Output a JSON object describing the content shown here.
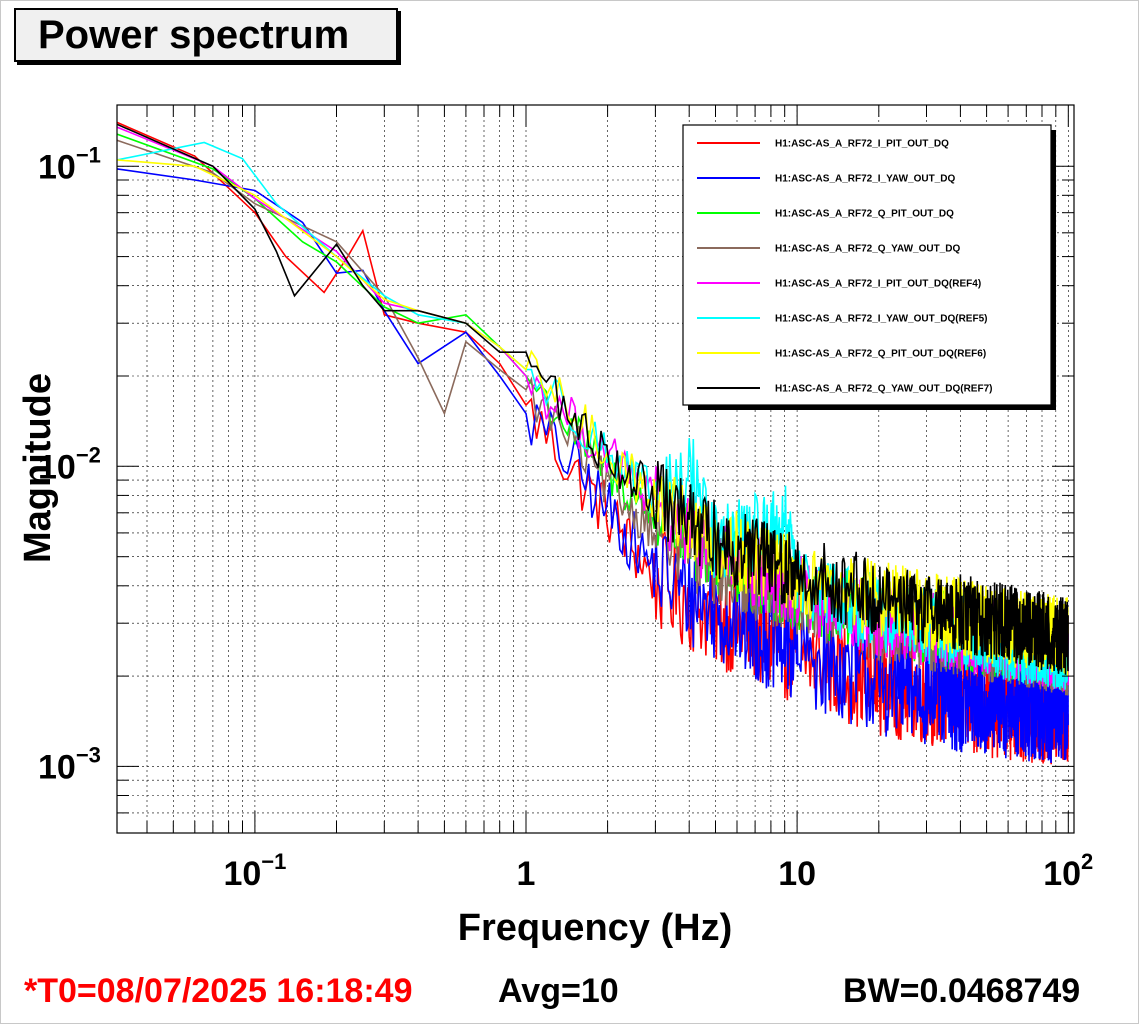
{
  "title": "Power spectrum",
  "footer": {
    "t0": "*T0=08/07/2025 16:18:49",
    "avg": "Avg=10",
    "bw": "BW=0.0468749"
  },
  "chart_data": {
    "type": "line",
    "title": "Power spectrum",
    "xlabel": "Frequency (Hz)",
    "ylabel": "Magnitude",
    "xscale": "log",
    "yscale": "log",
    "xlim": [
      0.031,
      105
    ],
    "ylim": [
      0.0006,
      0.16
    ],
    "xticks": [
      {
        "value": 0.1,
        "base": "10",
        "exp": "−1"
      },
      {
        "value": 1,
        "base": "1",
        "exp": ""
      },
      {
        "value": 10,
        "base": "10",
        "exp": ""
      },
      {
        "value": 100,
        "base": "10",
        "exp": "2"
      }
    ],
    "yticks": [
      {
        "value": 0.1,
        "base": "10",
        "exp": "−1"
      },
      {
        "value": 0.01,
        "base": "10",
        "exp": "−2"
      },
      {
        "value": 0.001,
        "base": "10",
        "exp": "−3"
      }
    ],
    "grid": true,
    "legend_position": "top-right",
    "series": [
      {
        "name": "H1:ASC-AS_A_RF72_I_PIT_OUT_DQ",
        "color": "#ff0000",
        "noise": 0.32,
        "points": [
          [
            0.031,
            0.14
          ],
          [
            0.06,
            0.108
          ],
          [
            0.1,
            0.07
          ],
          [
            0.13,
            0.05
          ],
          [
            0.18,
            0.038
          ],
          [
            0.22,
            0.05
          ],
          [
            0.25,
            0.061
          ],
          [
            0.3,
            0.032
          ],
          [
            0.4,
            0.03
          ],
          [
            0.6,
            0.028
          ],
          [
            0.8,
            0.022
          ],
          [
            1,
            0.016
          ],
          [
            1.5,
            0.0095
          ],
          [
            2,
            0.007
          ],
          [
            3,
            0.0042
          ],
          [
            5,
            0.0032
          ],
          [
            10,
            0.0024
          ],
          [
            20,
            0.0019
          ],
          [
            50,
            0.0016
          ],
          [
            100,
            0.0015
          ]
        ]
      },
      {
        "name": "H1:ASC-AS_A_RF72_I_YAW_OUT_DQ",
        "color": "#0000ff",
        "noise": 0.32,
        "points": [
          [
            0.031,
            0.098
          ],
          [
            0.06,
            0.09
          ],
          [
            0.1,
            0.083
          ],
          [
            0.15,
            0.065
          ],
          [
            0.2,
            0.044
          ],
          [
            0.25,
            0.045
          ],
          [
            0.3,
            0.033
          ],
          [
            0.4,
            0.022
          ],
          [
            0.6,
            0.028
          ],
          [
            0.8,
            0.02
          ],
          [
            1,
            0.015
          ],
          [
            1.5,
            0.01
          ],
          [
            2,
            0.0072
          ],
          [
            3,
            0.0045
          ],
          [
            5,
            0.0033
          ],
          [
            10,
            0.0024
          ],
          [
            20,
            0.0019
          ],
          [
            50,
            0.0016
          ],
          [
            100,
            0.0015
          ]
        ]
      },
      {
        "name": "H1:ASC-AS_A_RF72_Q_PIT_OUT_DQ",
        "color": "#00ff00",
        "noise": 0.24,
        "points": [
          [
            0.031,
            0.128
          ],
          [
            0.07,
            0.098
          ],
          [
            0.1,
            0.078
          ],
          [
            0.15,
            0.056
          ],
          [
            0.2,
            0.048
          ],
          [
            0.3,
            0.034
          ],
          [
            0.4,
            0.03
          ],
          [
            0.6,
            0.032
          ],
          [
            0.8,
            0.025
          ],
          [
            1,
            0.02
          ],
          [
            1.5,
            0.013
          ],
          [
            2,
            0.0095
          ],
          [
            3,
            0.0068
          ],
          [
            5,
            0.0048
          ],
          [
            10,
            0.0038
          ],
          [
            20,
            0.0031
          ],
          [
            50,
            0.0027
          ],
          [
            100,
            0.0024
          ]
        ]
      },
      {
        "name": "H1:ASC-AS_A_RF72_Q_YAW_OUT_DQ",
        "color": "#8b6a5c",
        "noise": 0.24,
        "points": [
          [
            0.031,
            0.122
          ],
          [
            0.07,
            0.095
          ],
          [
            0.1,
            0.075
          ],
          [
            0.2,
            0.056
          ],
          [
            0.3,
            0.037
          ],
          [
            0.4,
            0.023
          ],
          [
            0.5,
            0.015
          ],
          [
            0.6,
            0.026
          ],
          [
            0.8,
            0.021
          ],
          [
            1,
            0.018
          ],
          [
            1.5,
            0.012
          ],
          [
            2,
            0.0085
          ],
          [
            3,
            0.0062
          ],
          [
            5,
            0.0046
          ],
          [
            10,
            0.0037
          ],
          [
            20,
            0.003
          ],
          [
            50,
            0.0026
          ],
          [
            100,
            0.0023
          ]
        ]
      },
      {
        "name": "H1:ASC-AS_A_RF72_I_PIT_OUT_DQ(REF4)",
        "color": "#ff00ff",
        "noise": 0.24,
        "points": [
          [
            0.031,
            0.135
          ],
          [
            0.07,
            0.1
          ],
          [
            0.1,
            0.078
          ],
          [
            0.2,
            0.052
          ],
          [
            0.3,
            0.035
          ],
          [
            0.4,
            0.033
          ],
          [
            0.6,
            0.03
          ],
          [
            0.8,
            0.025
          ],
          [
            1,
            0.02
          ],
          [
            1.5,
            0.014
          ],
          [
            2,
            0.011
          ],
          [
            3,
            0.0075
          ],
          [
            5,
            0.0052
          ],
          [
            10,
            0.0038
          ],
          [
            20,
            0.0031
          ],
          [
            50,
            0.0027
          ],
          [
            100,
            0.0024
          ]
        ]
      },
      {
        "name": "H1:ASC-AS_A_RF72_I_YAW_OUT_DQ(REF5)",
        "color": "#00ffff",
        "noise": 0.24,
        "points": [
          [
            0.031,
            0.105
          ],
          [
            0.065,
            0.12
          ],
          [
            0.09,
            0.106
          ],
          [
            0.12,
            0.075
          ],
          [
            0.2,
            0.05
          ],
          [
            0.3,
            0.037
          ],
          [
            0.4,
            0.032
          ],
          [
            0.6,
            0.03
          ],
          [
            0.8,
            0.025
          ],
          [
            1,
            0.021
          ],
          [
            1.5,
            0.015
          ],
          [
            2,
            0.011
          ],
          [
            3,
            0.0078
          ],
          [
            4.2,
            0.0095
          ],
          [
            5,
            0.0055
          ],
          [
            9.5,
            0.0065
          ],
          [
            10,
            0.004
          ],
          [
            20,
            0.0032
          ],
          [
            50,
            0.0027
          ],
          [
            100,
            0.0024
          ]
        ]
      },
      {
        "name": "H1:ASC-AS_A_RF72_Q_PIT_OUT_DQ(REF6)",
        "color": "#ffff00",
        "noise": 0.24,
        "points": [
          [
            0.031,
            0.105
          ],
          [
            0.06,
            0.1
          ],
          [
            0.1,
            0.08
          ],
          [
            0.2,
            0.05
          ],
          [
            0.3,
            0.036
          ],
          [
            0.4,
            0.033
          ],
          [
            0.6,
            0.03
          ],
          [
            0.8,
            0.025
          ],
          [
            1,
            0.021
          ],
          [
            1.5,
            0.015
          ],
          [
            2,
            0.011
          ],
          [
            3,
            0.0078
          ],
          [
            5,
            0.0056
          ],
          [
            10,
            0.0043
          ],
          [
            20,
            0.0036
          ],
          [
            50,
            0.003
          ],
          [
            100,
            0.0027
          ]
        ]
      },
      {
        "name": "H1:ASC-AS_A_RF72_Q_YAW_OUT_DQ(REF7)",
        "color": "#000000",
        "noise": 0.24,
        "points": [
          [
            0.031,
            0.138
          ],
          [
            0.07,
            0.1
          ],
          [
            0.1,
            0.072
          ],
          [
            0.12,
            0.052
          ],
          [
            0.14,
            0.037
          ],
          [
            0.2,
            0.055
          ],
          [
            0.25,
            0.04
          ],
          [
            0.3,
            0.033
          ],
          [
            0.4,
            0.033
          ],
          [
            0.6,
            0.03
          ],
          [
            0.8,
            0.024
          ],
          [
            1,
            0.024
          ],
          [
            1.5,
            0.014
          ],
          [
            2,
            0.011
          ],
          [
            3,
            0.0078
          ],
          [
            5,
            0.0057
          ],
          [
            10,
            0.0044
          ],
          [
            20,
            0.0037
          ],
          [
            50,
            0.0031
          ],
          [
            100,
            0.0027
          ]
        ]
      }
    ]
  }
}
